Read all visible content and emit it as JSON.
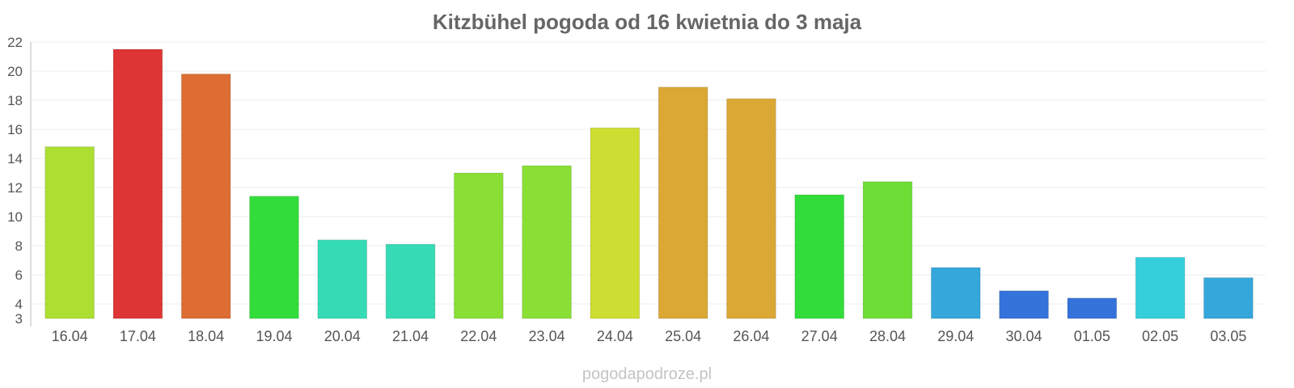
{
  "chart_data": {
    "type": "bar",
    "title": "Kitzbühel pogoda od 16 kwietnia do 3 maja",
    "xlabel": "",
    "ylabel": "",
    "categories": [
      "16.04",
      "17.04",
      "18.04",
      "19.04",
      "20.04",
      "21.04",
      "22.04",
      "23.04",
      "24.04",
      "25.04",
      "26.04",
      "27.04",
      "28.04",
      "29.04",
      "30.04",
      "01.05",
      "02.05",
      "03.05"
    ],
    "values": [
      14.8,
      21.5,
      19.8,
      11.4,
      8.4,
      8.1,
      13.0,
      13.5,
      16.1,
      18.9,
      18.1,
      11.5,
      12.4,
      6.5,
      4.9,
      4.4,
      7.2,
      5.8
    ],
    "colors": [
      "#acdf32",
      "#dd3535",
      "#dd6d32",
      "#32dd3a",
      "#35dbb4",
      "#35dbb4",
      "#8adf35",
      "#8adf35",
      "#cddd32",
      "#dba835",
      "#dba835",
      "#32dd3a",
      "#6edd35",
      "#35a7db",
      "#3573db",
      "#3573db",
      "#35cedb",
      "#35a7db"
    ],
    "ylim": [
      3,
      22
    ],
    "yticks": [
      3,
      4,
      6,
      8,
      10,
      12,
      14,
      16,
      18,
      20,
      22
    ],
    "grid": true,
    "legend": "none"
  },
  "watermark": "pogodapodroze.pl"
}
